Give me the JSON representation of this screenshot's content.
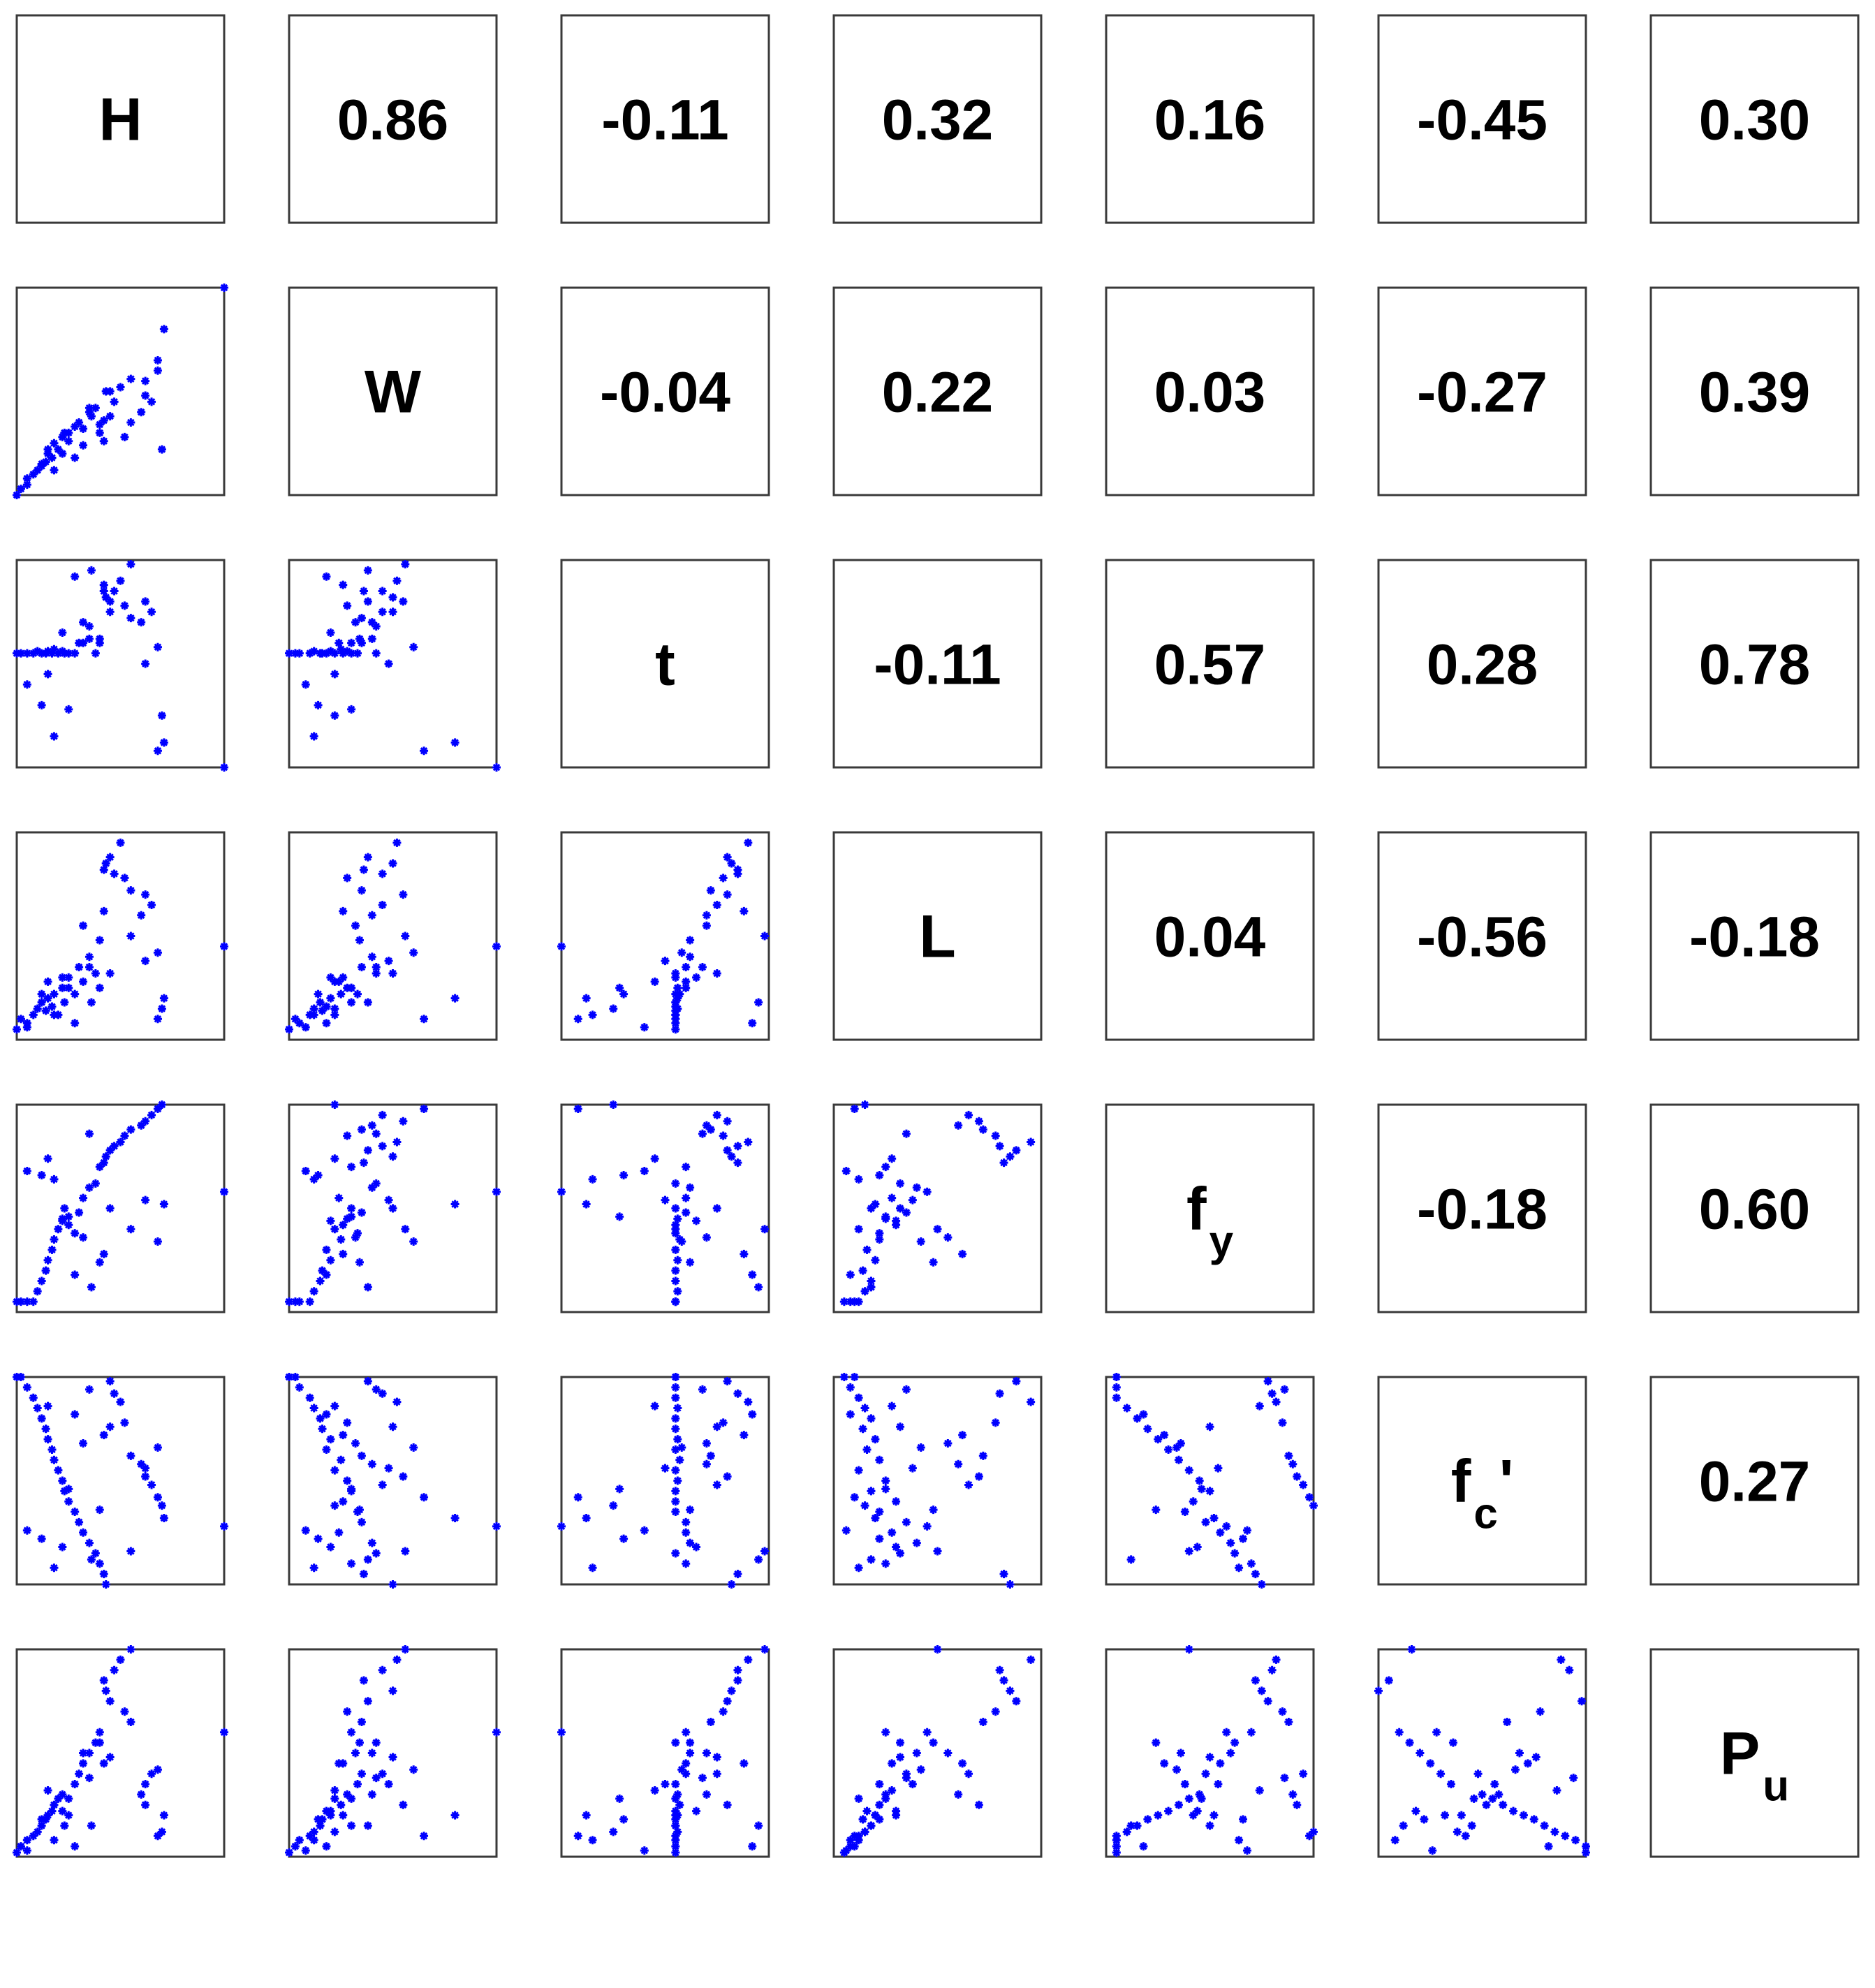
{
  "chart_data": {
    "type": "scatter",
    "plot_kind": "scatterplot matrix with correlation coefficients",
    "variables": [
      {
        "name": "H",
        "base": "H",
        "sub": ""
      },
      {
        "name": "W",
        "base": "W",
        "sub": ""
      },
      {
        "name": "t",
        "base": "t",
        "sub": ""
      },
      {
        "name": "L",
        "base": "L",
        "sub": ""
      },
      {
        "name": "fy",
        "base": "f",
        "sub": "y"
      },
      {
        "name": "fc'",
        "base": "f",
        "sub": "c",
        "suffix": "'"
      },
      {
        "name": "Pu",
        "base": "P",
        "sub": "u"
      }
    ],
    "correlations": [
      [
        "",
        "0.86",
        "-0.11",
        "0.32",
        "0.16",
        "-0.45",
        "0.30"
      ],
      [
        "",
        "",
        "-0.04",
        "0.22",
        "0.03",
        "-0.27",
        "0.39"
      ],
      [
        "",
        "",
        "",
        "-0.11",
        "0.57",
        "0.28",
        "0.78"
      ],
      [
        "",
        "",
        "",
        "",
        "0.04",
        "-0.56",
        "-0.18"
      ],
      [
        "",
        "",
        "",
        "",
        "",
        "-0.18",
        "0.60"
      ],
      [
        "",
        "",
        "",
        "",
        "",
        "",
        "0.27"
      ],
      [
        "",
        "",
        "",
        "",
        "",
        "",
        ""
      ]
    ],
    "marker_color": "#0000ff",
    "frame_color": "#3a3a3a",
    "axis_ranges": "each panel normalized 0 to 1 per variable; no tick labels shown",
    "grid": false,
    "legend": "none",
    "points": {
      "H": [
        0.0,
        0.02,
        0.05,
        0.08,
        0.1,
        0.12,
        0.14,
        0.15,
        0.17,
        0.18,
        0.2,
        0.22,
        0.23,
        0.25,
        0.28,
        0.3,
        0.32,
        0.35,
        0.38,
        0.4,
        0.42,
        0.43,
        0.45,
        0.47,
        0.5,
        0.52,
        0.55,
        0.6,
        0.62,
        0.65,
        0.68,
        0.7,
        0.71,
        1.0,
        0.12,
        0.22,
        0.32,
        0.42,
        0.28,
        0.36,
        0.18,
        0.25,
        0.62,
        0.68,
        0.4,
        0.05,
        0.15,
        0.35,
        0.45,
        0.55
      ],
      "W": [
        0.0,
        0.03,
        0.05,
        0.1,
        0.12,
        0.15,
        0.16,
        0.2,
        0.18,
        0.25,
        0.22,
        0.28,
        0.3,
        0.26,
        0.33,
        0.35,
        0.24,
        0.4,
        0.42,
        0.3,
        0.36,
        0.5,
        0.38,
        0.45,
        0.52,
        0.28,
        0.35,
        0.4,
        0.55,
        0.45,
        0.65,
        0.22,
        0.8,
        1.0,
        0.14,
        0.2,
        0.32,
        0.26,
        0.18,
        0.38,
        0.12,
        0.3,
        0.48,
        0.6,
        0.34,
        0.08,
        0.22,
        0.42,
        0.5,
        0.56
      ],
      "t": [
        0.55,
        0.55,
        0.55,
        0.55,
        0.56,
        0.55,
        0.55,
        0.56,
        0.55,
        0.57,
        0.55,
        0.56,
        0.55,
        0.55,
        0.55,
        0.6,
        0.6,
        0.62,
        0.55,
        0.6,
        0.85,
        0.82,
        0.8,
        0.85,
        0.9,
        0.78,
        0.72,
        0.7,
        0.8,
        0.75,
        0.08,
        0.25,
        0.12,
        0.0,
        0.3,
        0.65,
        0.7,
        0.88,
        0.92,
        0.95,
        0.15,
        0.28,
        0.5,
        0.58,
        0.62,
        0.4,
        0.45,
        0.68,
        0.75,
        0.98
      ],
      "L": [
        0.05,
        0.1,
        0.08,
        0.12,
        0.15,
        0.18,
        0.14,
        0.2,
        0.16,
        0.22,
        0.12,
        0.25,
        0.18,
        0.3,
        0.22,
        0.35,
        0.28,
        0.4,
        0.32,
        0.25,
        0.82,
        0.85,
        0.88,
        0.8,
        0.95,
        0.78,
        0.72,
        0.6,
        0.7,
        0.65,
        0.1,
        0.15,
        0.2,
        0.45,
        0.22,
        0.3,
        0.55,
        0.62,
        0.08,
        0.18,
        0.12,
        0.25,
        0.38,
        0.42,
        0.48,
        0.06,
        0.28,
        0.35,
        0.32,
        0.5
      ],
      "fy": [
        0.05,
        0.05,
        0.05,
        0.05,
        0.1,
        0.15,
        0.2,
        0.25,
        0.3,
        0.35,
        0.4,
        0.45,
        0.5,
        0.42,
        0.38,
        0.48,
        0.55,
        0.6,
        0.62,
        0.7,
        0.72,
        0.75,
        0.78,
        0.8,
        0.82,
        0.85,
        0.88,
        0.9,
        0.92,
        0.95,
        0.98,
        1.0,
        0.52,
        0.58,
        0.66,
        0.44,
        0.36,
        0.28,
        0.18,
        0.12,
        0.64,
        0.46,
        0.54,
        0.34,
        0.24,
        0.68,
        0.74,
        0.86,
        0.5,
        0.4
      ],
      "fc": [
        1.0,
        1.0,
        0.95,
        0.9,
        0.85,
        0.8,
        0.75,
        0.7,
        0.65,
        0.6,
        0.55,
        0.5,
        0.45,
        0.4,
        0.35,
        0.3,
        0.25,
        0.2,
        0.15,
        0.1,
        0.05,
        0.0,
        0.98,
        0.92,
        0.88,
        0.78,
        0.62,
        0.58,
        0.52,
        0.48,
        0.42,
        0.38,
        0.32,
        0.28,
        0.22,
        0.18,
        0.68,
        0.72,
        0.82,
        0.12,
        0.08,
        0.46,
        0.56,
        0.66,
        0.36,
        0.26,
        0.86,
        0.94,
        0.76,
        0.16
      ],
      "Pu": [
        0.02,
        0.05,
        0.08,
        0.1,
        0.12,
        0.15,
        0.18,
        0.2,
        0.22,
        0.25,
        0.28,
        0.3,
        0.15,
        0.2,
        0.35,
        0.4,
        0.45,
        0.5,
        0.55,
        0.6,
        0.85,
        0.8,
        0.75,
        0.9,
        0.95,
        0.7,
        0.65,
        0.3,
        0.25,
        0.4,
        0.1,
        0.12,
        0.2,
        0.6,
        0.18,
        0.22,
        0.5,
        0.45,
        0.05,
        0.15,
        0.08,
        0.28,
        0.35,
        0.42,
        0.55,
        0.03,
        0.32,
        0.38,
        0.48,
        1.0
      ]
    }
  }
}
